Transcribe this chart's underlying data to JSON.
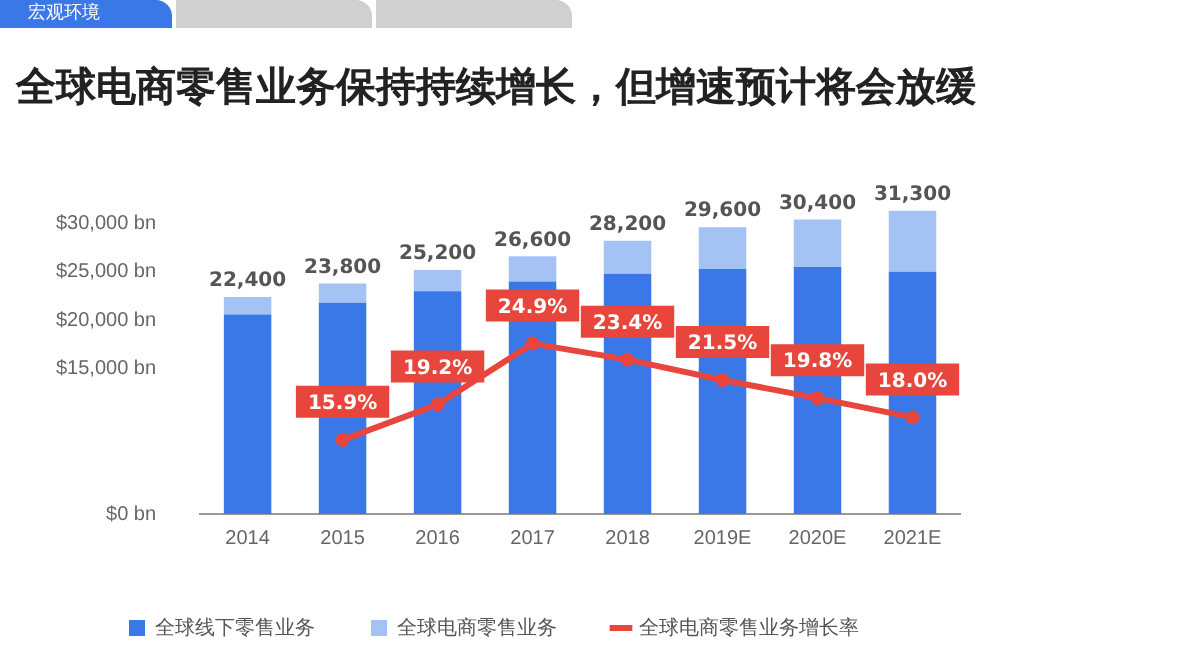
{
  "chart_data": {
    "type": "bar",
    "title": "全球电商零售业务保持持续增长，但增速预计将会放缓",
    "annotations": [
      "宏观环境"
    ],
    "categories": [
      "2014",
      "2015",
      "2016",
      "2017",
      "2018",
      "2019E",
      "2020E",
      "2021E"
    ],
    "stacked": true,
    "series": [
      {
        "name": "全球线下零售业务",
        "color": "#3b78e7",
        "values": [
          20600,
          21800,
          23000,
          24000,
          24800,
          25300,
          25500,
          25000
        ]
      },
      {
        "name": "全球电商零售业务",
        "color": "#a4c2f4",
        "values": [
          1800,
          2000,
          2200,
          2600,
          3400,
          4300,
          4900,
          6300
        ]
      },
      {
        "name": "全球电商零售业务增长率",
        "type": "line",
        "axis": "y2",
        "color": "#e8453c",
        "marker": "circle",
        "values": [
          null,
          15.9,
          19.2,
          24.9,
          23.4,
          21.5,
          19.8,
          18.0
        ],
        "value_labels": [
          null,
          "15.9%",
          "19.2%",
          "24.9%",
          "23.4%",
          "21.5%",
          "19.8%",
          "18.0%"
        ]
      }
    ],
    "totals": [
      "22,400",
      "23,800",
      "25,200",
      "26,600",
      "28,200",
      "29,600",
      "30,400",
      "31,300"
    ],
    "ylim": [
      0,
      32000
    ],
    "yticks": [
      {
        "value": 0,
        "label": "$0 bn"
      },
      {
        "value": 15000,
        "label": "$15,000 bn"
      },
      {
        "value": 20000,
        "label": "$20,000 bn"
      },
      {
        "value": 25000,
        "label": "$25,000 bn"
      },
      {
        "value": 30000,
        "label": "$30,000 bn"
      }
    ],
    "grid": false,
    "legend": "bottom"
  }
}
